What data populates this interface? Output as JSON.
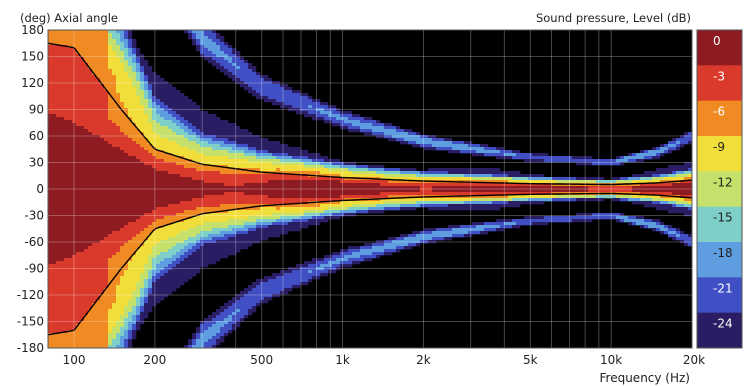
{
  "chart_data": {
    "type": "heatmap",
    "title_left": "(deg)  Axial angle",
    "title_right": "Sound pressure, Level  (dB)",
    "xlabel": "Frequency  (Hz)",
    "x_scale": "log",
    "xlim": [
      80,
      20000
    ],
    "ylim": [
      -180,
      180
    ],
    "x_ticks": [
      {
        "value": 100,
        "label": "100"
      },
      {
        "value": 200,
        "label": "200"
      },
      {
        "value": 500,
        "label": "500"
      },
      {
        "value": 1000,
        "label": "1k"
      },
      {
        "value": 2000,
        "label": "2k"
      },
      {
        "value": 5000,
        "label": "5k"
      },
      {
        "value": 10000,
        "label": "10k"
      },
      {
        "value": 20000,
        "label": "20k"
      }
    ],
    "y_ticks": [
      {
        "value": 180,
        "label": "180"
      },
      {
        "value": 150,
        "label": "150"
      },
      {
        "value": 120,
        "label": "120"
      },
      {
        "value": 90,
        "label": "90"
      },
      {
        "value": 60,
        "label": "60"
      },
      {
        "value": 30,
        "label": "30"
      },
      {
        "value": 0,
        "label": "0"
      },
      {
        "value": -30,
        "label": "-30"
      },
      {
        "value": -60,
        "label": "-60"
      },
      {
        "value": -90,
        "label": "-90"
      },
      {
        "value": -120,
        "label": "-120"
      },
      {
        "value": -150,
        "label": "-150"
      },
      {
        "value": -180,
        "label": "-180"
      }
    ],
    "color_levels": [
      {
        "label": "0",
        "db": 0,
        "color": "#8e1a22"
      },
      {
        "label": "-3",
        "db": -3,
        "color": "#d93a2c"
      },
      {
        "label": "-6",
        "db": -6,
        "color": "#f08a22"
      },
      {
        "label": "-9",
        "db": -9,
        "color": "#f2de3a"
      },
      {
        "label": "-12",
        "db": -12,
        "color": "#c6e06c"
      },
      {
        "label": "-15",
        "db": -15,
        "color": "#7dcfc8"
      },
      {
        "label": "-18",
        "db": -18,
        "color": "#5e9ee0"
      },
      {
        "label": "-21",
        "db": -21,
        "color": "#4050c4"
      },
      {
        "label": "-24",
        "db": -24,
        "color": "#2a1d64"
      }
    ],
    "below_range_color": "#000000",
    "contour_line": {
      "level_db": -6,
      "color": "#000000"
    },
    "grid": true,
    "legend_position": "right",
    "beam_halfwidth_deg": [
      {
        "f": 80,
        "a": 165
      },
      {
        "f": 100,
        "a": 160
      },
      {
        "f": 150,
        "a": 90
      },
      {
        "f": 200,
        "a": 45
      },
      {
        "f": 300,
        "a": 28
      },
      {
        "f": 500,
        "a": 19
      },
      {
        "f": 1000,
        "a": 13
      },
      {
        "f": 2000,
        "a": 9
      },
      {
        "f": 5000,
        "a": 6
      },
      {
        "f": 10000,
        "a": 5
      },
      {
        "f": 15000,
        "a": 7
      },
      {
        "f": 20000,
        "a": 10
      }
    ]
  }
}
